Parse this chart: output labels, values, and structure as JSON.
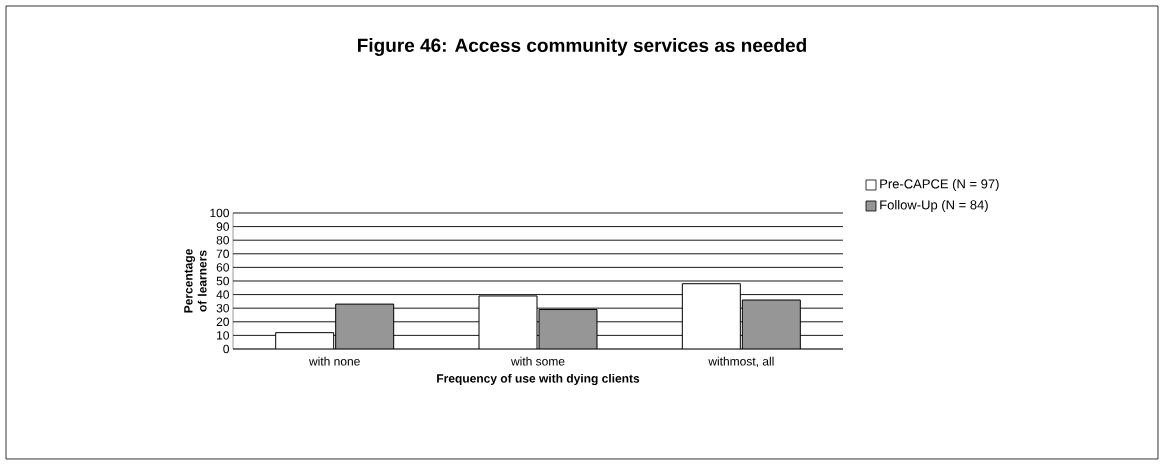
{
  "chart_data": {
    "type": "bar",
    "title": "Figure 46: Access community services as needed",
    "xlabel": "Frequency of use with dying clients",
    "ylabel": "Percentage of learners",
    "categories": [
      "with none",
      "with some",
      "withmost, all"
    ],
    "series": [
      {
        "name": "Pre-CAPCE (N = 97)",
        "color": "#ffffff",
        "values": [
          12,
          39,
          48
        ]
      },
      {
        "name": "Follow-Up (N = 84)",
        "color": "#969696",
        "values": [
          33,
          29,
          36
        ]
      }
    ],
    "ylim": [
      0,
      100
    ],
    "yticks": [
      0,
      10,
      20,
      30,
      40,
      50,
      60,
      70,
      80,
      90,
      100
    ],
    "grid": "y",
    "legend": "right"
  }
}
